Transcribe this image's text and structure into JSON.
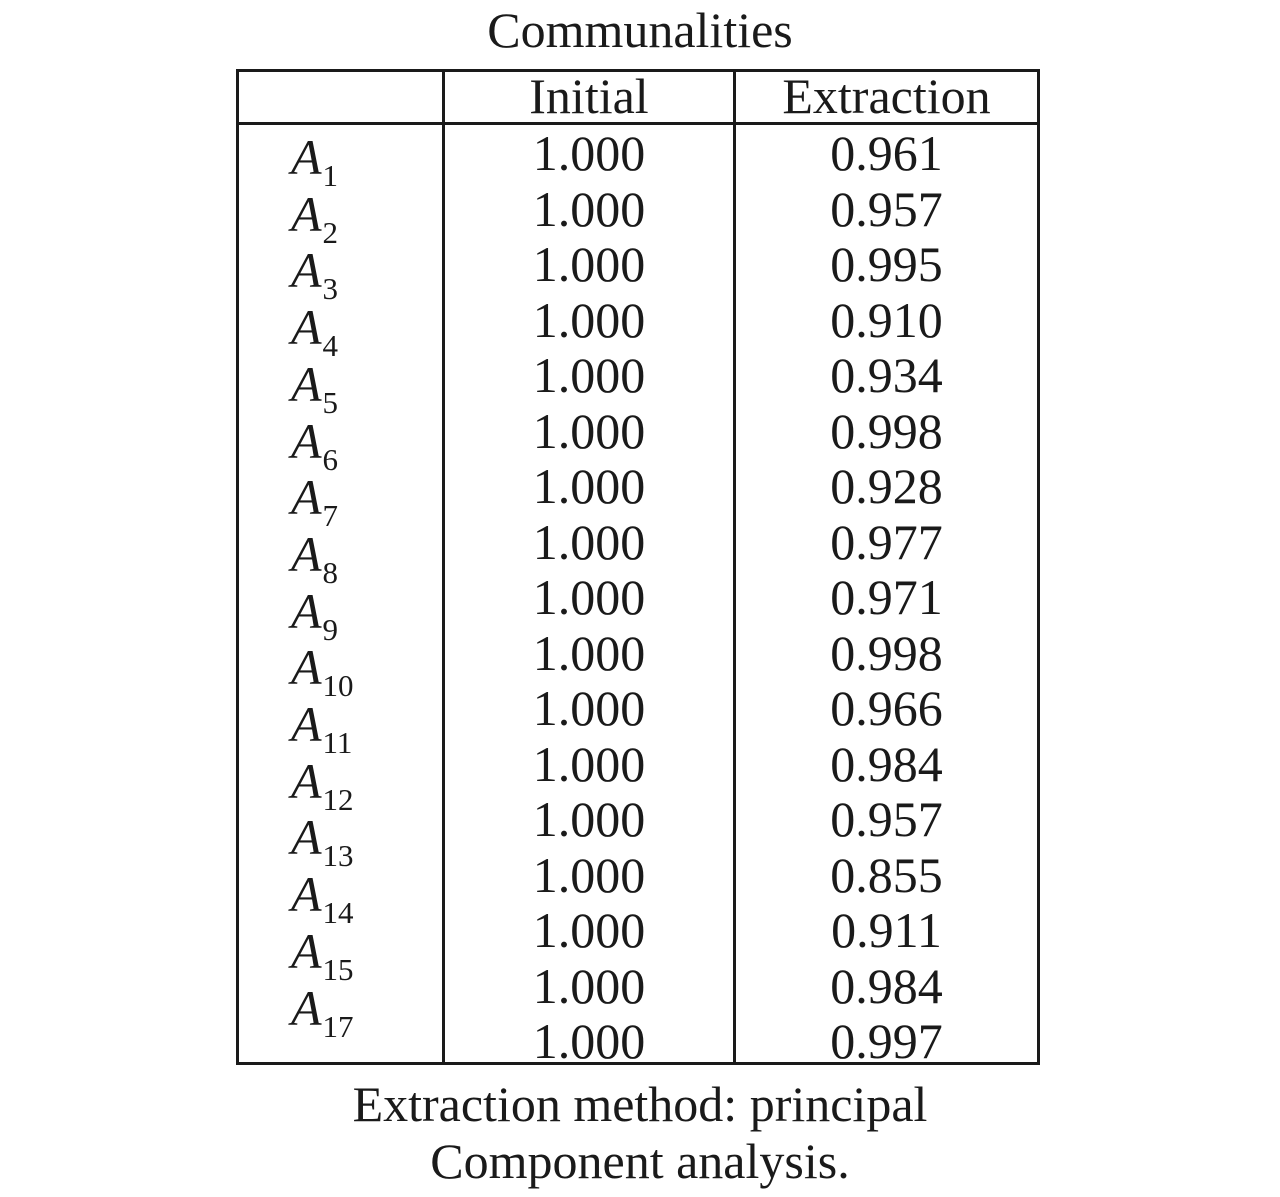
{
  "title": "Communalities",
  "table": {
    "headers": [
      "",
      "Initial",
      "Extraction"
    ],
    "rows": [
      {
        "variable": "A",
        "subscript": "1",
        "initial": "1.000",
        "extraction": "0.961"
      },
      {
        "variable": "A",
        "subscript": "2",
        "initial": "1.000",
        "extraction": "0.957"
      },
      {
        "variable": "A",
        "subscript": "3",
        "initial": "1.000",
        "extraction": "0.995"
      },
      {
        "variable": "A",
        "subscript": "4",
        "initial": "1.000",
        "extraction": "0.910"
      },
      {
        "variable": "A",
        "subscript": "5",
        "initial": "1.000",
        "extraction": "0.934"
      },
      {
        "variable": "A",
        "subscript": "6",
        "initial": "1.000",
        "extraction": "0.998"
      },
      {
        "variable": "A",
        "subscript": "7",
        "initial": "1.000",
        "extraction": "0.928"
      },
      {
        "variable": "A",
        "subscript": "8",
        "initial": "1.000",
        "extraction": "0.977"
      },
      {
        "variable": "A",
        "subscript": "9",
        "initial": "1.000",
        "extraction": "0.971"
      },
      {
        "variable": "A",
        "subscript": "10",
        "initial": "1.000",
        "extraction": "0.998"
      },
      {
        "variable": "A",
        "subscript": "11",
        "initial": "1.000",
        "extraction": "0.966"
      },
      {
        "variable": "A",
        "subscript": "12",
        "initial": "1.000",
        "extraction": "0.984"
      },
      {
        "variable": "A",
        "subscript": "13",
        "initial": "1.000",
        "extraction": "0.957"
      },
      {
        "variable": "A",
        "subscript": "14",
        "initial": "1.000",
        "extraction": "0.855"
      },
      {
        "variable": "A",
        "subscript": "15",
        "initial": "1.000",
        "extraction": "0.911"
      },
      {
        "variable": "A",
        "subscript": "17",
        "initial": "1.000",
        "extraction": "0.984"
      },
      {
        "variable": "",
        "subscript": "",
        "initial": "1.000",
        "extraction": "0.997"
      }
    ]
  },
  "note": {
    "line1": "Extraction method: principal",
    "line2": "Component analysis."
  }
}
